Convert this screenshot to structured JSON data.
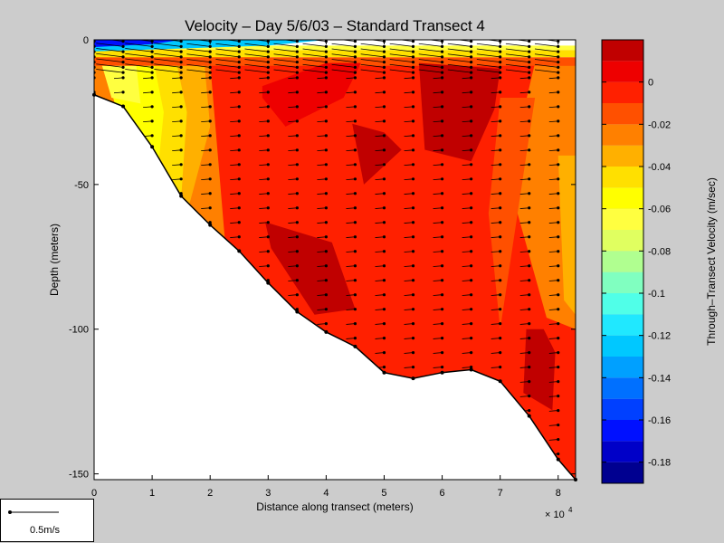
{
  "chart_data": {
    "type": "heatmap",
    "title": "Velocity – Day 5/6/03 – Standard Transect 4",
    "xlabel": "Distance along transect (meters)",
    "ylabel": "Depth (meters)",
    "x_exponent_label": "× 10",
    "x_exponent_power": "4",
    "xlim": [
      0,
      83000
    ],
    "ylim": [
      -152,
      0
    ],
    "x_ticks": [
      "0",
      "1",
      "2",
      "3",
      "4",
      "5",
      "6",
      "7",
      "8"
    ],
    "y_ticks": [
      "0",
      "-50",
      "-100",
      "-150"
    ],
    "colorbar": {
      "label": "Through–Transect Velocity (m/sec)",
      "range": [
        -0.19,
        0.02
      ],
      "ticks": [
        "0",
        "-0.02",
        "-0.04",
        "-0.06",
        "-0.08",
        "-0.1",
        "-0.12",
        "-0.14",
        "-0.16",
        "-0.18"
      ],
      "levels": [
        -0.19,
        -0.18,
        -0.17,
        -0.16,
        -0.15,
        -0.14,
        -0.13,
        -0.12,
        -0.11,
        -0.1,
        -0.09,
        -0.08,
        -0.07,
        -0.06,
        -0.05,
        -0.04,
        -0.03,
        -0.02,
        -0.01,
        0,
        0.01,
        0.02
      ],
      "colors": [
        "#000090",
        "#0000c8",
        "#0010ff",
        "#0040ff",
        "#0070ff",
        "#00a0ff",
        "#00c8ff",
        "#20e8ff",
        "#50ffe8",
        "#80ffc0",
        "#b0ff90",
        "#e0ff60",
        "#ffff40",
        "#ffff00",
        "#ffe000",
        "#ffb000",
        "#ff8000",
        "#ff5000",
        "#ff2000",
        "#ee0000",
        "#c00000"
      ]
    },
    "bathymetry": {
      "x": [
        0,
        5000,
        10000,
        15000,
        20000,
        25000,
        30000,
        35000,
        40000,
        45000,
        50000,
        55000,
        60000,
        65000,
        70000,
        75000,
        80000,
        83000
      ],
      "depth": [
        -19,
        -23,
        -37,
        -54,
        -64,
        -73,
        -84,
        -94,
        -101,
        -106,
        -115,
        -117,
        -115,
        -114,
        -118,
        -130,
        -145,
        -152
      ]
    },
    "velocity_regions": [
      {
        "value": -0.005,
        "x": [
          4000,
          83000,
          83000,
          4000
        ],
        "y": [
          -1,
          -1,
          -152,
          -152
        ]
      },
      {
        "value": 0.005,
        "x": [
          29000,
          40000,
          46000,
          43000,
          33000,
          29000
        ],
        "y": [
          -16,
          -8,
          -8,
          -20,
          -30,
          -20
        ]
      },
      {
        "value": 0.015,
        "x": [
          56000,
          70000,
          69000,
          65000,
          57000
        ],
        "y": [
          -8,
          -10,
          -24,
          -42,
          -38
        ]
      },
      {
        "value": 0.015,
        "x": [
          44500,
          50000,
          53000,
          46500
        ],
        "y": [
          -29,
          -32,
          -38,
          -50
        ]
      },
      {
        "value": 0.015,
        "x": [
          29500,
          41000,
          45000,
          38000,
          30500
        ],
        "y": [
          -63,
          -70,
          -93,
          -95,
          -72
        ]
      },
      {
        "value": 0.015,
        "x": [
          74500,
          77500,
          79500,
          79000,
          74000
        ],
        "y": [
          -100,
          -100,
          -108,
          -128,
          -122
        ]
      }
    ],
    "vector_scale": {
      "label": "0.5m/s",
      "value": 0.5
    }
  }
}
